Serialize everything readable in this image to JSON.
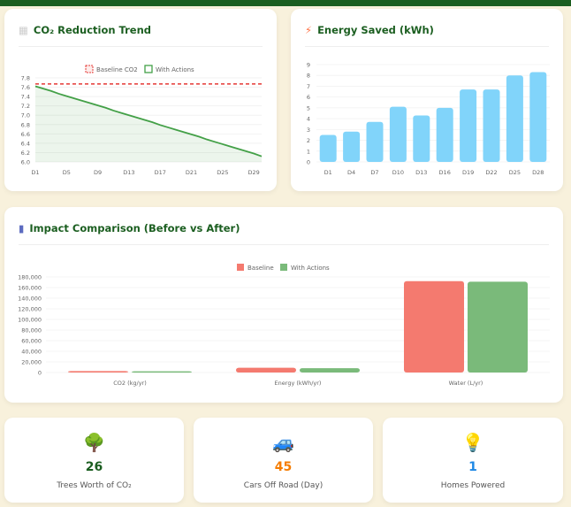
{
  "cards": {
    "co2_title": "CO₂ Reduction Trend",
    "energy_title": "Energy Saved (kWh)",
    "impact_title": "Impact Comparison (Before vs After)"
  },
  "stats": [
    {
      "icon": "🌳",
      "value": "26",
      "label": "Trees Worth of CO₂",
      "color": "#1b5e20"
    },
    {
      "icon": "🚙",
      "value": "45",
      "label": "Cars Off Road (Day)",
      "color": "#f57c00"
    },
    {
      "icon": "💡",
      "value": "1",
      "label": "Homes Powered",
      "color": "#1e88e5"
    }
  ],
  "chart_data": [
    {
      "type": "line",
      "title": "CO₂ Reduction Trend",
      "legend": [
        "Baseline CO2",
        "With Actions"
      ],
      "x_labels": [
        "D1",
        "D5",
        "D9",
        "D13",
        "D17",
        "D21",
        "D25",
        "D29"
      ],
      "baseline": 7.67,
      "series": [
        {
          "name": "With Actions",
          "values": [
            7.62,
            7.57,
            7.52,
            7.46,
            7.41,
            7.36,
            7.31,
            7.26,
            7.21,
            7.16,
            7.1,
            7.05,
            7.0,
            6.95,
            6.9,
            6.85,
            6.79,
            6.74,
            6.69,
            6.64,
            6.59,
            6.54,
            6.48,
            6.43,
            6.38,
            6.33,
            6.28,
            6.23,
            6.18,
            6.12
          ]
        }
      ],
      "ylim": [
        6.0,
        7.8
      ],
      "yticks": [
        "7.8",
        "7.6",
        "7.4",
        "7.2",
        "7.0",
        "6.8",
        "6.6",
        "6.4",
        "6.2",
        "6.0"
      ],
      "colors": [
        "#e53935",
        "#43a047"
      ]
    },
    {
      "type": "bar",
      "title": "Energy Saved (kWh)",
      "categories": [
        "D1",
        "D4",
        "D7",
        "D10",
        "D13",
        "D16",
        "D19",
        "D22",
        "D25",
        "D28"
      ],
      "values": [
        2.5,
        2.8,
        3.7,
        5.1,
        4.3,
        5.0,
        6.7,
        6.7,
        8.0,
        8.3
      ],
      "ylim": [
        0,
        9
      ],
      "yticks": [
        "0",
        "1",
        "2",
        "3",
        "4",
        "5",
        "6",
        "7",
        "8",
        "9"
      ],
      "color": "#81d4fa"
    },
    {
      "type": "bar",
      "title": "Impact Comparison (Before vs After)",
      "categories": [
        "CO2 (kg/yr)",
        "Energy (kWh/yr)",
        "Water (L/yr)"
      ],
      "series": [
        {
          "name": "Baseline",
          "values": [
            2800,
            9000,
            172000
          ],
          "color": "#f47a6f"
        },
        {
          "name": "With Actions",
          "values": [
            2300,
            8200,
            171000
          ],
          "color": "#7aba7a"
        }
      ],
      "ylim": [
        0,
        180000
      ],
      "yticks": [
        "0",
        "20,000",
        "40,000",
        "60,000",
        "80,000",
        "100,000",
        "120,000",
        "140,000",
        "160,000",
        "180,000"
      ]
    }
  ]
}
